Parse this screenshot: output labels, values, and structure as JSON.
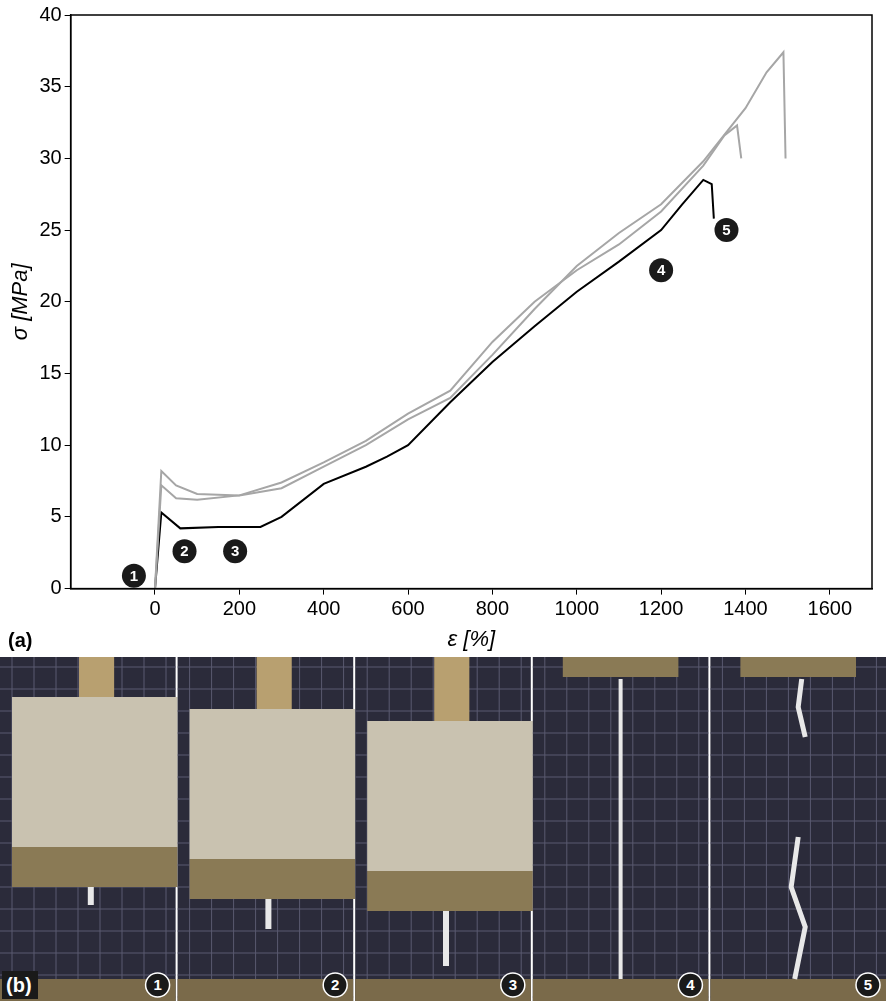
{
  "chart_data": {
    "type": "line",
    "panel_label": "(a)",
    "x_label": "ε [%]",
    "y_label": "σ [MPa]",
    "xlim": [
      -200,
      1700
    ],
    "xticks": [
      0,
      200,
      400,
      600,
      800,
      1000,
      1200,
      1400,
      1600
    ],
    "ylim": [
      0,
      40
    ],
    "yticks": [
      0,
      5,
      10,
      15,
      20,
      25,
      30,
      35,
      40
    ],
    "grid": false,
    "series": [
      {
        "color": "#a6a6a6",
        "x": [
          0,
          15,
          50,
          100,
          200,
          300,
          400,
          500,
          600,
          700,
          800,
          900,
          1000,
          1100,
          1200,
          1300,
          1400,
          1450,
          1490,
          1495
        ],
        "values": [
          0,
          8.2,
          7.2,
          6.6,
          6.5,
          7.0,
          8.5,
          10.0,
          11.8,
          13.3,
          16.3,
          19.5,
          22.5,
          24.8,
          26.8,
          29.8,
          33.5,
          36.0,
          37.4,
          30.0
        ]
      },
      {
        "color": "#a6a6a6",
        "x": [
          0,
          15,
          50,
          100,
          200,
          300,
          400,
          500,
          600,
          700,
          800,
          900,
          1000,
          1100,
          1200,
          1300,
          1350,
          1380,
          1390
        ],
        "values": [
          0,
          7.2,
          6.3,
          6.2,
          6.5,
          7.4,
          8.8,
          10.3,
          12.2,
          13.8,
          17.2,
          20.0,
          22.2,
          24.0,
          26.3,
          29.5,
          31.6,
          32.3,
          30.0
        ]
      },
      {
        "color": "#000000",
        "x": [
          0,
          15,
          60,
          150,
          250,
          300,
          400,
          500,
          550,
          600,
          700,
          800,
          900,
          1000,
          1100,
          1200,
          1250,
          1300,
          1320,
          1325
        ],
        "values": [
          0,
          5.3,
          4.2,
          4.3,
          4.3,
          5.0,
          7.3,
          8.5,
          9.2,
          10.0,
          13.0,
          15.8,
          18.3,
          20.7,
          22.8,
          25.0,
          26.8,
          28.5,
          28.2,
          25.8
        ]
      }
    ],
    "annotations": [
      {
        "text": "1",
        "x": -50,
        "y": 0.9
      },
      {
        "text": "2",
        "x": 70,
        "y": 2.6
      },
      {
        "text": "3",
        "x": 190,
        "y": 2.6
      },
      {
        "text": "4",
        "x": 1200,
        "y": 22.2
      },
      {
        "text": "5",
        "x": 1355,
        "y": 25.0
      }
    ]
  },
  "photo_strip": {
    "panel_label": "(b)",
    "frames": [
      "1",
      "2",
      "3",
      "4",
      "5"
    ]
  }
}
